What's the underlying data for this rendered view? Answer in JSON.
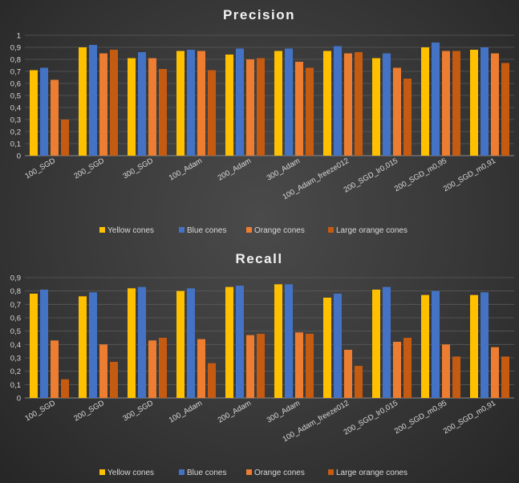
{
  "colors": {
    "yellow": "#FFC000",
    "blue": "#4472C4",
    "orange": "#ED7D31",
    "large_orange": "#C55A11"
  },
  "chart_data": [
    {
      "type": "bar",
      "title": "Precision",
      "xlabel": "",
      "ylabel": "",
      "ylim": [
        0,
        1
      ],
      "yticks": [
        "0",
        "0,1",
        "0,2",
        "0,3",
        "0,4",
        "0,5",
        "0,6",
        "0,7",
        "0,8",
        "0,9",
        "1"
      ],
      "grid": true,
      "legend": "bottom",
      "categories": [
        "100_SGD",
        "200_SGD",
        "300_SGD",
        "100_Adam",
        "200_Adam",
        "300_Adam",
        "100_Adam_freeze012",
        "200_SGD_lr0,015",
        "200_SGD_m0,95",
        "200_SGD_m0,91"
      ],
      "series": [
        {
          "name": "Yellow cones",
          "values": [
            0.71,
            0.9,
            0.81,
            0.87,
            0.84,
            0.87,
            0.87,
            0.81,
            0.9,
            0.88
          ]
        },
        {
          "name": "Blue cones",
          "values": [
            0.73,
            0.92,
            0.86,
            0.88,
            0.89,
            0.89,
            0.91,
            0.85,
            0.94,
            0.9
          ]
        },
        {
          "name": "Orange cones",
          "values": [
            0.63,
            0.85,
            0.81,
            0.87,
            0.8,
            0.78,
            0.85,
            0.73,
            0.87,
            0.85
          ]
        },
        {
          "name": "Large orange cones",
          "values": [
            0.3,
            0.88,
            0.72,
            0.71,
            0.81,
            0.73,
            0.86,
            0.64,
            0.87,
            0.77
          ]
        }
      ]
    },
    {
      "type": "bar",
      "title": "Recall",
      "xlabel": "",
      "ylabel": "",
      "ylim": [
        0,
        0.9
      ],
      "yticks": [
        "0",
        "0,1",
        "0,2",
        "0,3",
        "0,4",
        "0,5",
        "0,6",
        "0,7",
        "0,8",
        "0,9"
      ],
      "grid": true,
      "legend": "bottom",
      "categories": [
        "100_SGD",
        "200_SGD",
        "300_SGD",
        "100_Adam",
        "200_Adam",
        "300_Adam",
        "100_Adam_freeze012",
        "200_SGD_lr0,015",
        "200_SGD_m0,95",
        "200_SGD_m0,91"
      ],
      "series": [
        {
          "name": "Yellow cones",
          "values": [
            0.78,
            0.76,
            0.82,
            0.8,
            0.83,
            0.85,
            0.75,
            0.81,
            0.77,
            0.77
          ]
        },
        {
          "name": "Blue cones",
          "values": [
            0.81,
            0.79,
            0.83,
            0.82,
            0.84,
            0.85,
            0.78,
            0.83,
            0.8,
            0.79
          ]
        },
        {
          "name": "Orange cones",
          "values": [
            0.43,
            0.4,
            0.43,
            0.44,
            0.47,
            0.49,
            0.36,
            0.42,
            0.4,
            0.38
          ]
        },
        {
          "name": "Large orange cones",
          "values": [
            0.14,
            0.27,
            0.45,
            0.26,
            0.48,
            0.48,
            0.24,
            0.45,
            0.31,
            0.31
          ]
        }
      ]
    }
  ]
}
